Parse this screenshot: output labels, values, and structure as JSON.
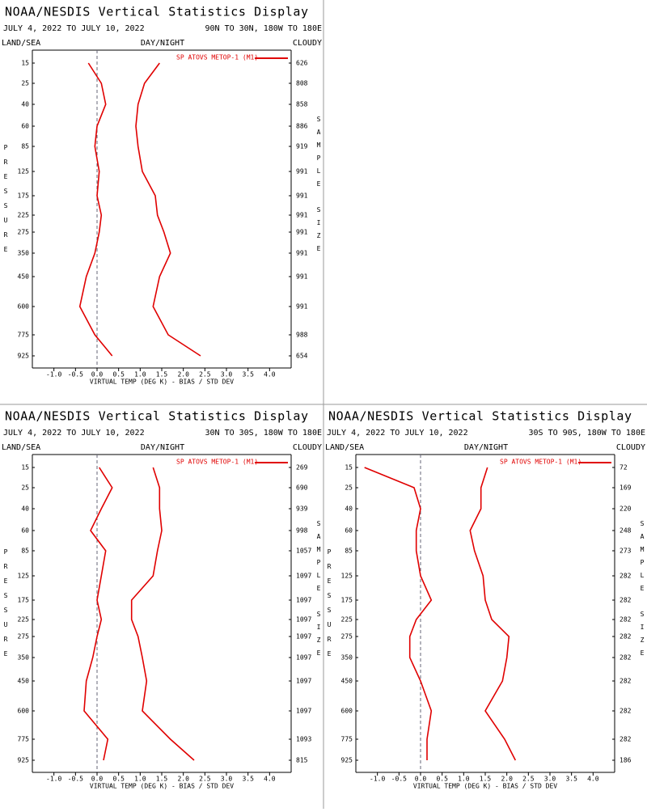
{
  "chart_data": [
    {
      "type": "line",
      "title": "NOAA/NESDIS Vertical Statistics Display",
      "date_range": "JULY 4, 2022 TO JULY 10, 2022",
      "region": "90N TO 30N, 180W TO 180E",
      "land_sea": "LAND/SEA",
      "day_night": "DAY/NIGHT",
      "cloudy": "CLOUDY",
      "ylabel": "PRESSURE",
      "y2label": "SAMPLE SIZE",
      "xlabel": "VIRTUAL TEMP (DEG K) - BIAS / STD DEV",
      "categories": [
        15,
        25,
        40,
        60,
        85,
        125,
        175,
        225,
        275,
        350,
        450,
        600,
        775,
        925
      ],
      "sample_size": [
        626,
        808,
        858,
        886,
        919,
        991,
        991,
        991,
        991,
        991,
        991,
        991,
        988,
        654
      ],
      "series": [
        {
          "name": "SP ATOVS METOP-1 (M1)",
          "color": "#e00000",
          "bias": [
            -0.2,
            0.1,
            0.2,
            0.0,
            -0.05,
            0.05,
            0.0,
            0.1,
            0.05,
            -0.05,
            -0.25,
            -0.4,
            -0.05,
            0.35
          ],
          "std_dev": [
            1.45,
            1.1,
            0.95,
            0.9,
            0.95,
            1.05,
            1.35,
            1.4,
            1.55,
            1.7,
            1.45,
            1.3,
            1.65,
            2.4
          ]
        }
      ],
      "xlim": [
        -1.5,
        4.5
      ],
      "xticks": [
        {
          "value": -1,
          "label": "-1.0"
        },
        {
          "value": -0.5,
          "label": "-0.5"
        },
        {
          "value": 0,
          "label": "0.0"
        },
        {
          "value": 0.5,
          "label": "0.5"
        },
        {
          "value": 1,
          "label": "1.0"
        },
        {
          "value": 1.5,
          "label": "1.5"
        },
        {
          "value": 2,
          "label": "2.0"
        },
        {
          "value": 2.5,
          "label": "2.5"
        },
        {
          "value": 3,
          "label": "3.0"
        },
        {
          "value": 3.5,
          "label": "3.5"
        },
        {
          "value": 4,
          "label": "4.0"
        }
      ]
    },
    {
      "type": "line",
      "title": "NOAA/NESDIS Vertical Statistics Display",
      "date_range": "JULY 4, 2022 TO JULY 10, 2022",
      "region": "30N TO 30S, 180W TO 180E",
      "land_sea": "LAND/SEA",
      "day_night": "DAY/NIGHT",
      "cloudy": "CLOUDY",
      "ylabel": "PRESSURE",
      "y2label": "SAMPLE SIZE",
      "xlabel": "VIRTUAL TEMP (DEG K) - BIAS / STD DEV",
      "categories": [
        15,
        25,
        40,
        60,
        85,
        125,
        175,
        225,
        275,
        350,
        450,
        600,
        775,
        925
      ],
      "sample_size": [
        269,
        690,
        939,
        998,
        1057,
        1097,
        1097,
        1097,
        1097,
        1097,
        1097,
        1097,
        1093,
        815
      ],
      "series": [
        {
          "name": "SP ATOVS METOP-1 (M1)",
          "color": "#e00000",
          "bias": [
            0.05,
            0.35,
            0.1,
            -0.15,
            0.2,
            0.1,
            0.0,
            0.1,
            0.0,
            -0.1,
            -0.25,
            -0.3,
            0.25,
            0.15
          ],
          "std_dev": [
            1.3,
            1.45,
            1.45,
            1.5,
            1.4,
            1.3,
            0.8,
            0.8,
            0.95,
            1.05,
            1.15,
            1.05,
            1.7,
            2.25
          ]
        }
      ],
      "xlim": [
        -1.5,
        4.5
      ],
      "xticks": [
        {
          "value": -1,
          "label": "-1.0"
        },
        {
          "value": -0.5,
          "label": "-0.5"
        },
        {
          "value": 0,
          "label": "0.0"
        },
        {
          "value": 0.5,
          "label": "0.5"
        },
        {
          "value": 1,
          "label": "1.0"
        },
        {
          "value": 1.5,
          "label": "1.5"
        },
        {
          "value": 2,
          "label": "2.0"
        },
        {
          "value": 2.5,
          "label": "2.5"
        },
        {
          "value": 3,
          "label": "3.0"
        },
        {
          "value": 3.5,
          "label": "3.5"
        },
        {
          "value": 4,
          "label": "4.0"
        }
      ]
    },
    {
      "type": "line",
      "title": "NOAA/NESDIS Vertical Statistics Display",
      "date_range": "JULY 4, 2022 TO JULY 10, 2022",
      "region": "30S TO 90S, 180W TO 180E",
      "land_sea": "LAND/SEA",
      "day_night": "DAY/NIGHT",
      "cloudy": "CLOUDY",
      "ylabel": "PRESSURE",
      "y2label": "SAMPLE SIZE",
      "xlabel": "VIRTUAL TEMP (DEG K) - BIAS / STD DEV",
      "categories": [
        15,
        25,
        40,
        60,
        85,
        125,
        175,
        225,
        275,
        350,
        450,
        600,
        775,
        925
      ],
      "sample_size": [
        72,
        169,
        220,
        248,
        273,
        282,
        282,
        282,
        282,
        282,
        282,
        282,
        282,
        186
      ],
      "series": [
        {
          "name": "SP ATOVS METOP-1 (M1)",
          "color": "#e00000",
          "bias": [
            -1.3,
            -0.15,
            0.0,
            -0.1,
            -0.1,
            0.0,
            0.25,
            -0.1,
            -0.25,
            -0.25,
            0.0,
            0.25,
            0.15,
            0.15
          ],
          "std_dev": [
            1.55,
            1.4,
            1.4,
            1.15,
            1.25,
            1.45,
            1.5,
            1.65,
            2.05,
            2.0,
            1.9,
            1.5,
            1.95,
            2.2
          ]
        }
      ],
      "xlim": [
        -1.5,
        4.5
      ],
      "xticks": [
        {
          "value": -1,
          "label": "-1.0"
        },
        {
          "value": -0.5,
          "label": "-0.5"
        },
        {
          "value": 0,
          "label": "0.0"
        },
        {
          "value": 0.5,
          "label": "0.5"
        },
        {
          "value": 1,
          "label": "1.0"
        },
        {
          "value": 1.5,
          "label": "1.5"
        },
        {
          "value": 2,
          "label": "2.0"
        },
        {
          "value": 2.5,
          "label": "2.5"
        },
        {
          "value": 3,
          "label": "3.0"
        },
        {
          "value": 3.5,
          "label": "3.5"
        },
        {
          "value": 4,
          "label": "4.0"
        }
      ]
    }
  ]
}
